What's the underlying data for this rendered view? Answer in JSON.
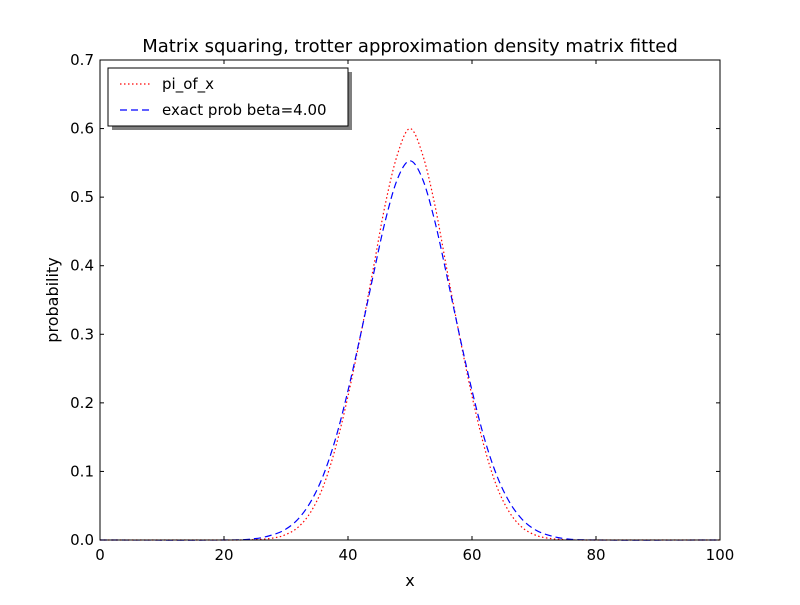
{
  "chart_data": {
    "type": "line",
    "title": "Matrix squaring, trotter approximation density matrix fitted",
    "xlabel": "x",
    "ylabel": "probability",
    "xlim": [
      0,
      100
    ],
    "ylim": [
      0,
      0.7
    ],
    "xticks": [
      0,
      20,
      40,
      60,
      80,
      100
    ],
    "yticks": [
      0.0,
      0.1,
      0.2,
      0.3,
      0.4,
      0.5,
      0.6,
      0.7
    ],
    "xtick_labels": [
      "0",
      "20",
      "40",
      "60",
      "80",
      "100"
    ],
    "ytick_labels": [
      "0.0",
      "0.1",
      "0.2",
      "0.3",
      "0.4",
      "0.5",
      "0.6",
      "0.7"
    ],
    "grid": false,
    "legend_position": "top-left",
    "x": [
      0,
      20,
      25,
      28,
      30,
      32,
      34,
      36,
      38,
      40,
      42,
      44,
      46,
      48,
      50,
      52,
      54,
      56,
      58,
      60,
      62,
      64,
      66,
      68,
      70,
      72,
      75,
      80,
      100
    ],
    "series": [
      {
        "name": "pi_of_x",
        "color": "#ff0000",
        "style": "dotted",
        "values": [
          0,
          0,
          0.0005,
          0.003,
          0.008,
          0.019,
          0.041,
          0.078,
          0.135,
          0.21,
          0.297,
          0.392,
          0.489,
          0.563,
          0.6,
          0.563,
          0.489,
          0.392,
          0.297,
          0.21,
          0.135,
          0.078,
          0.041,
          0.019,
          0.008,
          0.003,
          0.0005,
          0,
          0
        ]
      },
      {
        "name": "exact prob beta=4.00",
        "color": "#0000ff",
        "style": "dashed",
        "values": [
          0,
          0,
          0.002,
          0.008,
          0.016,
          0.031,
          0.056,
          0.094,
          0.148,
          0.218,
          0.298,
          0.383,
          0.465,
          0.527,
          0.553,
          0.527,
          0.465,
          0.383,
          0.298,
          0.218,
          0.148,
          0.094,
          0.056,
          0.031,
          0.016,
          0.008,
          0.002,
          0,
          0
        ]
      }
    ]
  }
}
